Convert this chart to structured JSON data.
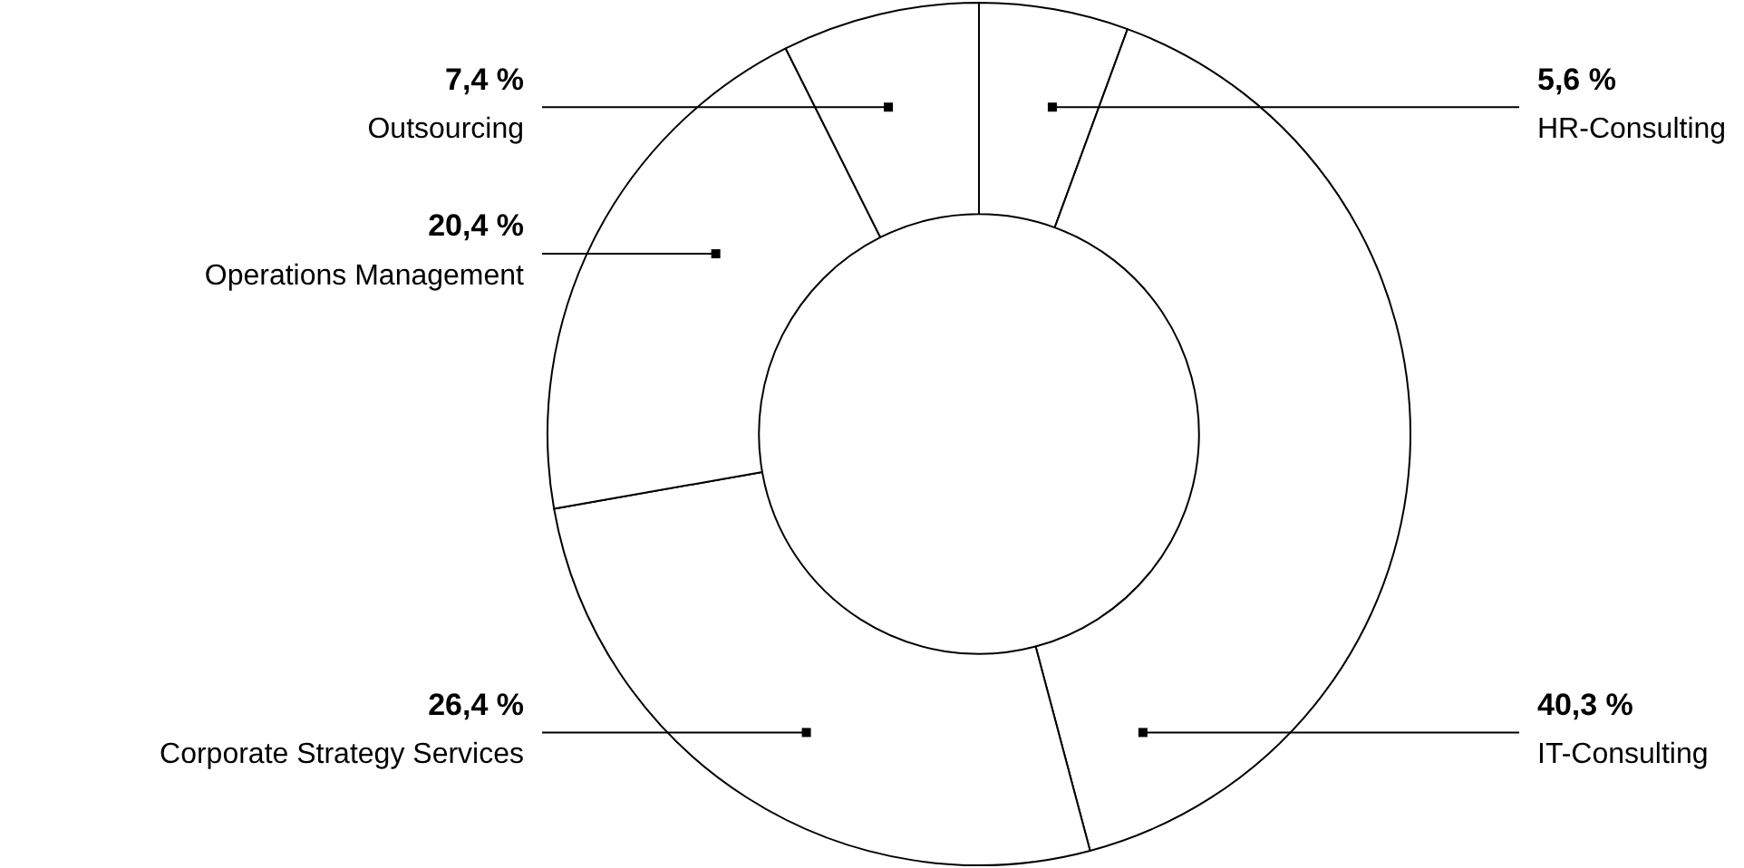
{
  "chart_data": {
    "type": "donut",
    "categories": [
      "HR-Consulting",
      "IT-Consulting",
      "Corporate Strategy Services",
      "Operations Management",
      "Outsourcing"
    ],
    "values": [
      5.6,
      40.3,
      26.4,
      20.4,
      7.4
    ],
    "colors": [
      "#ffffff",
      "#ffffff",
      "#ffffff",
      "#ffffff",
      "#ffffff"
    ],
    "value_labels": [
      "5,6 %",
      "40,3 %",
      "26,4 %",
      "20,4 %",
      "7,4 %"
    ]
  }
}
